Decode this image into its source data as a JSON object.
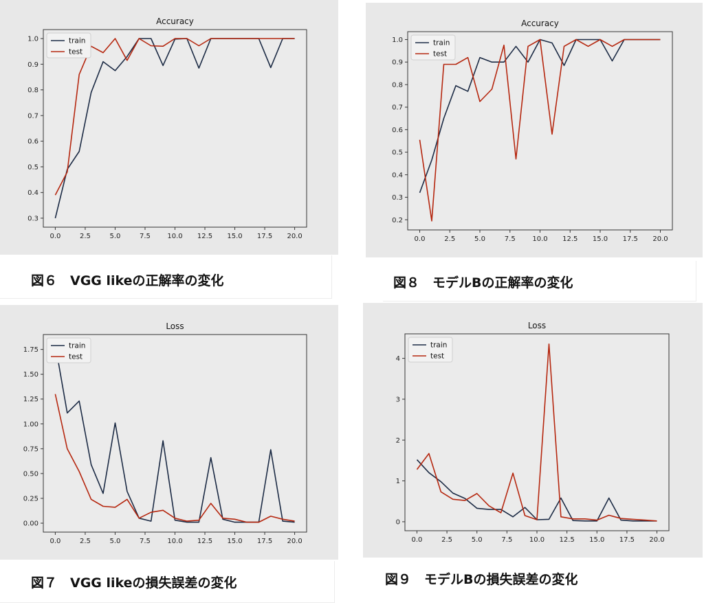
{
  "figures": [
    {
      "caption": "図６　VGG likeの正解率の変化"
    },
    {
      "caption": "図８　モデルBの正解率の変化"
    },
    {
      "caption": "図７　VGG likeの損失誤差の変化"
    },
    {
      "caption": "図９　モデルBの損失誤差の変化"
    }
  ],
  "colors": {
    "train": "#1b2a44",
    "test": "#b5260e",
    "panel_bg": "#e8e8e8",
    "plot_bg": "#ebebeb"
  },
  "chart_data": [
    {
      "type": "line",
      "title": "Accuracy",
      "xlabel": "",
      "ylabel": "",
      "x": [
        0,
        1,
        2,
        3,
        4,
        5,
        6,
        7,
        8,
        9,
        10,
        11,
        12,
        13,
        14,
        15,
        16,
        17,
        18,
        19,
        20
      ],
      "xlim": [
        -1,
        21
      ],
      "ylim": [
        0.265,
        1.035
      ],
      "xticks": [
        0.0,
        2.5,
        5.0,
        7.5,
        10.0,
        12.5,
        15.0,
        17.5,
        20.0
      ],
      "xtick_labels": [
        "0.0",
        "2.5",
        "5.0",
        "7.5",
        "10.0",
        "12.5",
        "15.0",
        "17.5",
        "20.0"
      ],
      "yticks": [
        0.3,
        0.4,
        0.5,
        0.6,
        0.7,
        0.8,
        0.9,
        1.0
      ],
      "ytick_labels": [
        "0.3",
        "0.4",
        "0.5",
        "0.6",
        "0.7",
        "0.8",
        "0.9",
        "1.0"
      ],
      "legend": "top-left",
      "series": [
        {
          "name": "train",
          "values": [
            0.3,
            0.49,
            0.56,
            0.79,
            0.91,
            0.875,
            0.93,
            1.0,
            1.0,
            0.895,
            0.998,
            1.0,
            0.885,
            1.0,
            1.0,
            1.0,
            1.0,
            1.0,
            0.887,
            1.0,
            1.0
          ]
        },
        {
          "name": "test",
          "values": [
            0.39,
            0.48,
            0.86,
            0.97,
            0.945,
            1.0,
            0.915,
            1.0,
            0.972,
            0.97,
            1.0,
            1.0,
            0.972,
            1.0,
            1.0,
            1.0,
            1.0,
            1.0,
            1.0,
            1.0,
            1.0
          ]
        }
      ]
    },
    {
      "type": "line",
      "title": "Accuracy",
      "xlabel": "",
      "ylabel": "",
      "x": [
        0,
        1,
        2,
        3,
        4,
        5,
        6,
        7,
        8,
        9,
        10,
        11,
        12,
        13,
        14,
        15,
        16,
        17,
        18,
        19,
        20
      ],
      "xlim": [
        -1,
        21
      ],
      "ylim": [
        0.155,
        1.035
      ],
      "xticks": [
        0.0,
        2.5,
        5.0,
        7.5,
        10.0,
        12.5,
        15.0,
        17.5,
        20.0
      ],
      "xtick_labels": [
        "0.0",
        "2.5",
        "5.0",
        "7.5",
        "10.0",
        "12.5",
        "15.0",
        "17.5",
        "20.0"
      ],
      "yticks": [
        0.2,
        0.3,
        0.4,
        0.5,
        0.6,
        0.7,
        0.8,
        0.9,
        1.0
      ],
      "ytick_labels": [
        "0.2",
        "0.3",
        "0.4",
        "0.5",
        "0.6",
        "0.7",
        "0.8",
        "0.9",
        "1.0"
      ],
      "legend": "top-left",
      "series": [
        {
          "name": "train",
          "values": [
            0.32,
            0.465,
            0.65,
            0.795,
            0.77,
            0.92,
            0.9,
            0.9,
            0.97,
            0.9,
            1.0,
            0.985,
            0.885,
            1.0,
            1.0,
            1.0,
            0.905,
            1.0,
            1.0,
            1.0,
            1.0
          ]
        },
        {
          "name": "test",
          "values": [
            0.555,
            0.195,
            0.89,
            0.89,
            0.92,
            0.725,
            0.78,
            0.975,
            0.47,
            0.97,
            1.0,
            0.58,
            0.97,
            1.0,
            0.97,
            1.0,
            0.97,
            1.0,
            1.0,
            1.0,
            1.0
          ]
        }
      ]
    },
    {
      "type": "line",
      "title": "Loss",
      "xlabel": "",
      "ylabel": "",
      "x": [
        0,
        1,
        2,
        3,
        4,
        5,
        6,
        7,
        8,
        9,
        10,
        11,
        12,
        13,
        14,
        15,
        16,
        17,
        18,
        19,
        20
      ],
      "xlim": [
        -1,
        21
      ],
      "ylim": [
        -0.09,
        1.9
      ],
      "xticks": [
        0.0,
        2.5,
        5.0,
        7.5,
        10.0,
        12.5,
        15.0,
        17.5,
        20.0
      ],
      "xtick_labels": [
        "0.0",
        "2.5",
        "5.0",
        "7.5",
        "10.0",
        "12.5",
        "15.0",
        "17.5",
        "20.0"
      ],
      "yticks": [
        0.0,
        0.25,
        0.5,
        0.75,
        1.0,
        1.25,
        1.5,
        1.75
      ],
      "ytick_labels": [
        "0.00",
        "0.25",
        "0.50",
        "0.75",
        "1.00",
        "1.25",
        "1.50",
        "1.75"
      ],
      "legend": "top-left",
      "series": [
        {
          "name": "train",
          "values": [
            1.8,
            1.11,
            1.23,
            0.59,
            0.3,
            1.01,
            0.32,
            0.05,
            0.02,
            0.83,
            0.03,
            0.01,
            0.01,
            0.66,
            0.04,
            0.01,
            0.01,
            0.01,
            0.74,
            0.02,
            0.01
          ]
        },
        {
          "name": "test",
          "values": [
            1.3,
            0.75,
            0.52,
            0.24,
            0.17,
            0.16,
            0.24,
            0.05,
            0.11,
            0.13,
            0.05,
            0.02,
            0.03,
            0.2,
            0.05,
            0.04,
            0.01,
            0.01,
            0.07,
            0.04,
            0.02
          ]
        }
      ]
    },
    {
      "type": "line",
      "title": "Loss",
      "xlabel": "",
      "ylabel": "",
      "x": [
        0,
        1,
        2,
        3,
        4,
        5,
        6,
        7,
        8,
        9,
        10,
        11,
        12,
        13,
        14,
        15,
        16,
        17,
        18,
        19,
        20
      ],
      "xlim": [
        -1,
        21
      ],
      "ylim": [
        -0.22,
        4.6
      ],
      "xticks": [
        0.0,
        2.5,
        5.0,
        7.5,
        10.0,
        12.5,
        15.0,
        17.5,
        20.0
      ],
      "xtick_labels": [
        "0.0",
        "2.5",
        "5.0",
        "7.5",
        "10.0",
        "12.5",
        "15.0",
        "17.5",
        "20.0"
      ],
      "yticks": [
        0,
        1,
        2,
        3,
        4
      ],
      "ytick_labels": [
        "0",
        "1",
        "2",
        "3",
        "4"
      ],
      "legend": "top-left",
      "series": [
        {
          "name": "train",
          "values": [
            1.52,
            1.2,
            0.98,
            0.7,
            0.57,
            0.33,
            0.3,
            0.3,
            0.12,
            0.35,
            0.05,
            0.06,
            0.58,
            0.03,
            0.02,
            0.02,
            0.58,
            0.04,
            0.02,
            0.02,
            0.02
          ]
        },
        {
          "name": "test",
          "values": [
            1.28,
            1.67,
            0.73,
            0.55,
            0.52,
            0.69,
            0.39,
            0.22,
            1.19,
            0.15,
            0.05,
            4.35,
            0.12,
            0.07,
            0.07,
            0.04,
            0.16,
            0.08,
            0.06,
            0.04,
            0.02
          ]
        }
      ]
    }
  ]
}
